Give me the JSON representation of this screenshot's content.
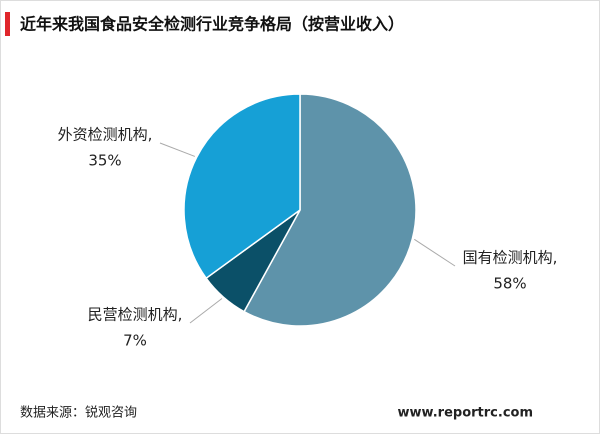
{
  "chart_data": {
    "type": "pie",
    "title": "近年来我国食品安全检测行业竞争格局（按营业收入）",
    "categories": [
      "国有检测机构,",
      "民营检测机构,",
      "外资检测机构,"
    ],
    "values": [
      58,
      7,
      35
    ],
    "value_labels": [
      "58%",
      "7%",
      "35%"
    ],
    "colors": [
      "#5e93aa",
      "#0b5068",
      "#16a0d6"
    ],
    "source": "数据来源：锐观咨询",
    "website": "www.reportrc.com"
  }
}
